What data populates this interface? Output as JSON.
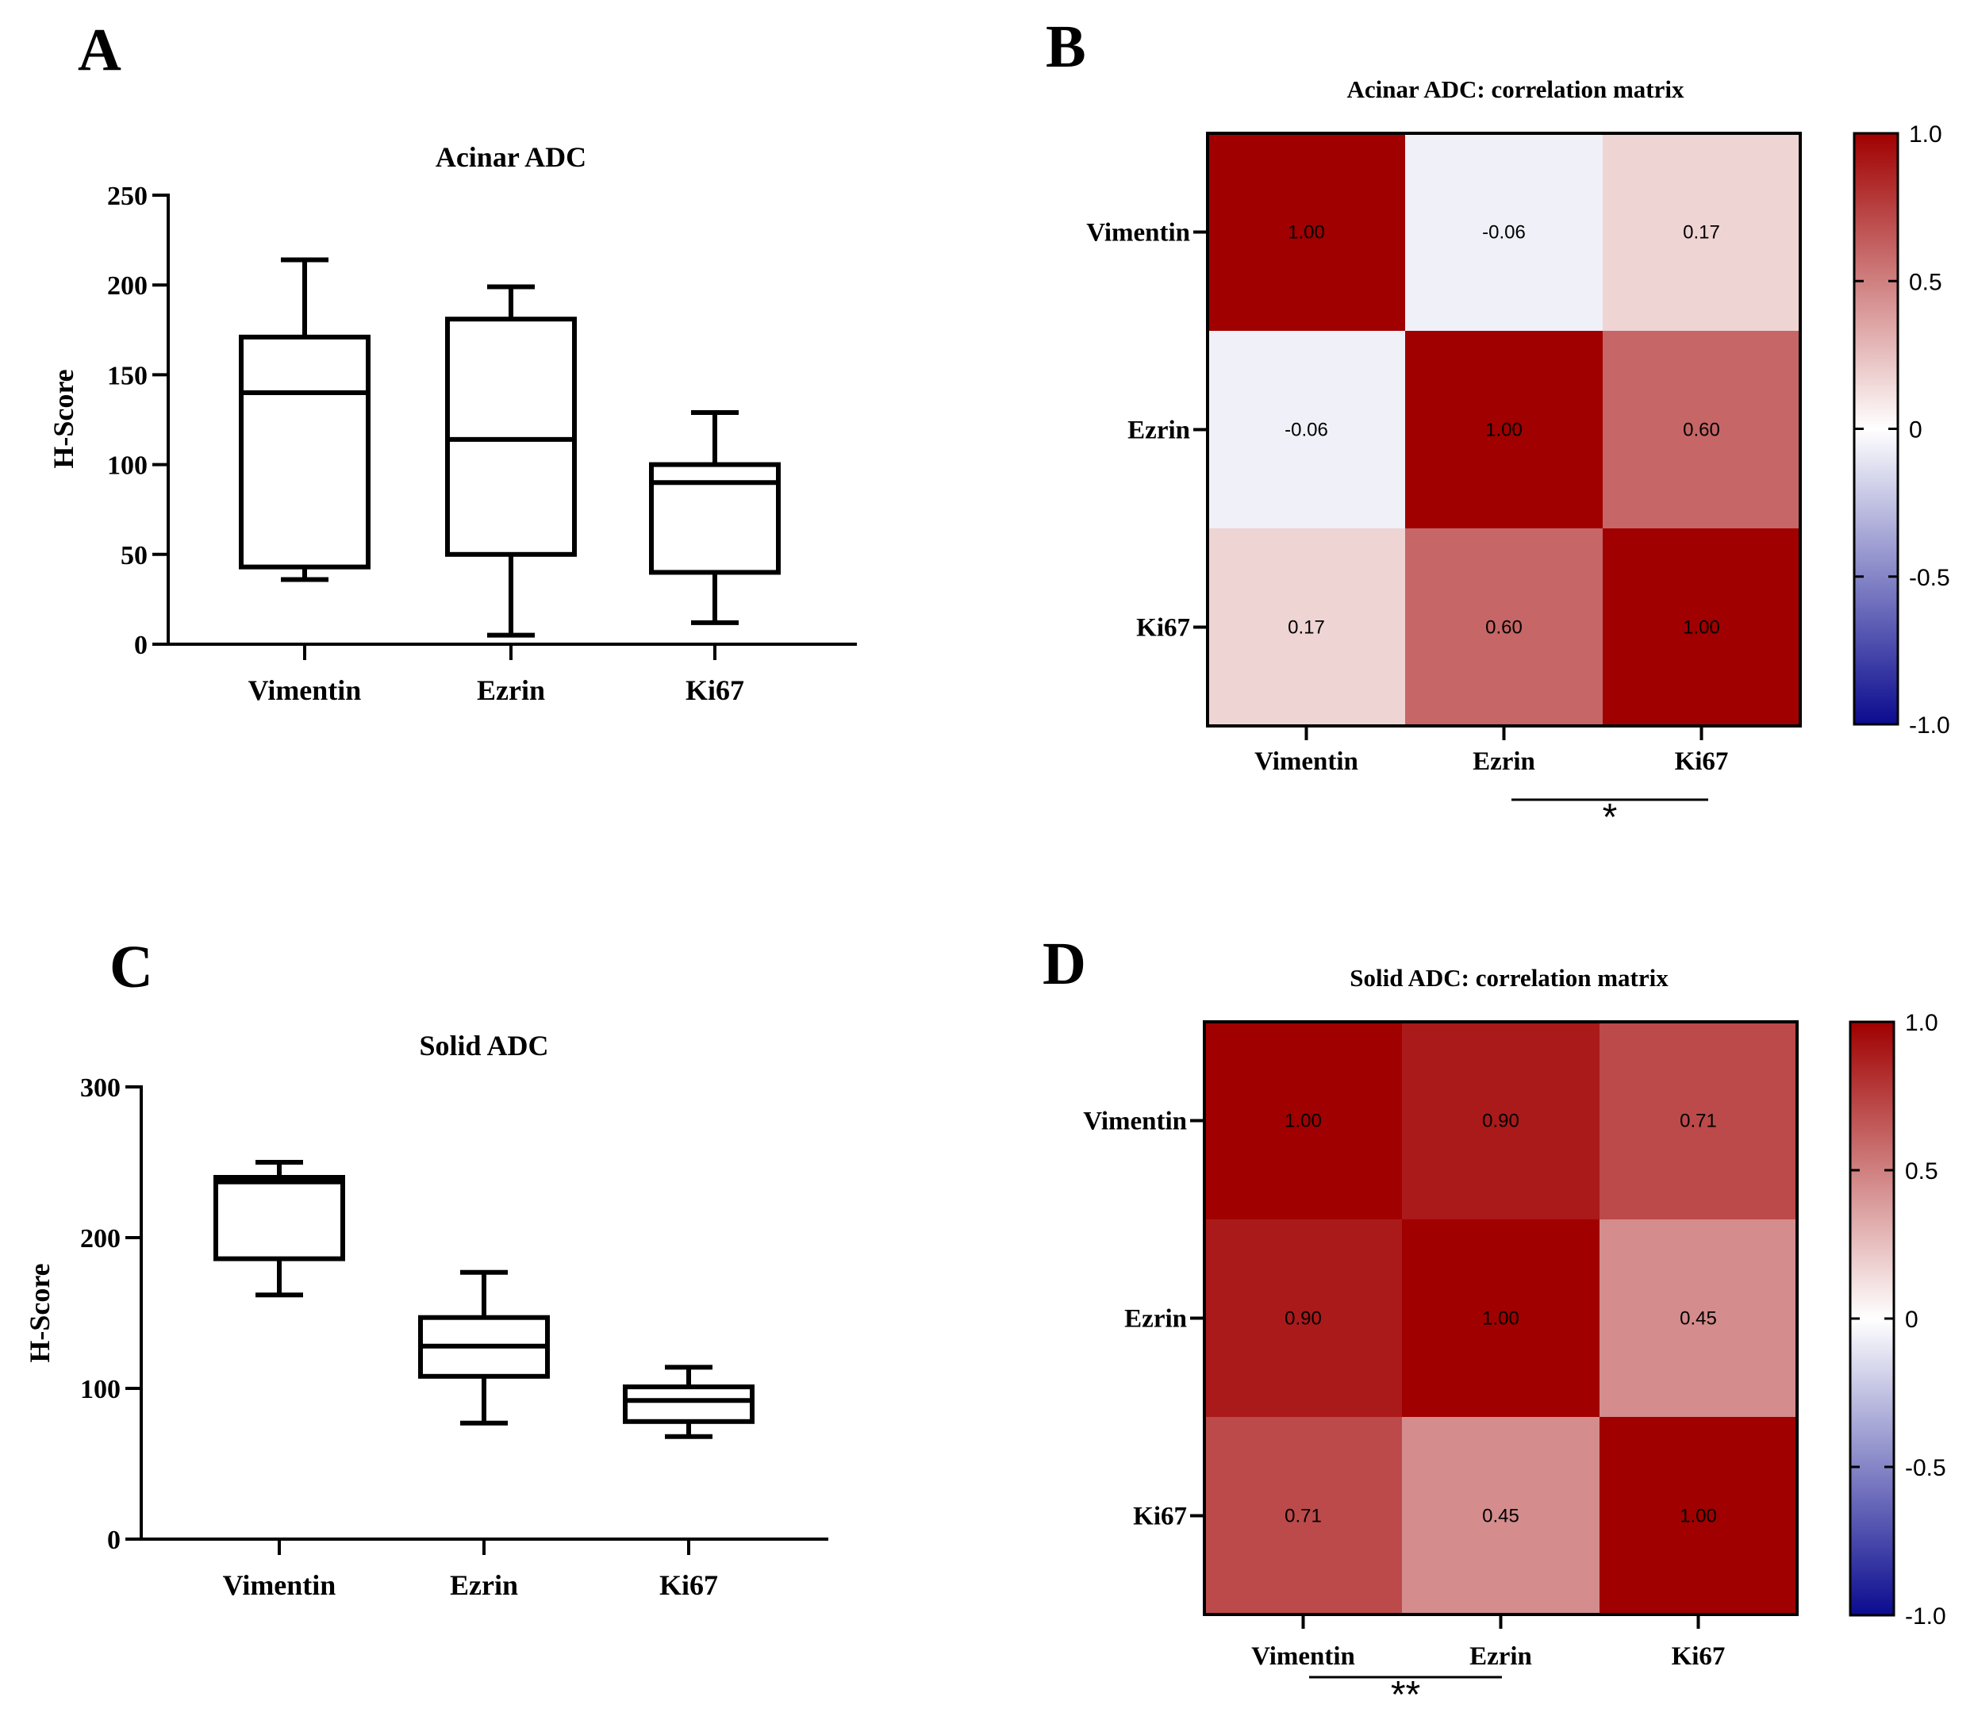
{
  "panels": {
    "A": "A",
    "B": "B",
    "C": "C",
    "D": "D"
  },
  "colors": {
    "neg": "#0b0b8f",
    "zero": "#ffffff",
    "pos": "#a00000",
    "stroke": "#000000"
  },
  "chart_data": [
    {
      "id": "A",
      "type": "box",
      "title": "Acinar ADC",
      "ylabel": "H-Score",
      "ylim": [
        0,
        250
      ],
      "yticks": [
        0,
        50,
        100,
        150,
        200,
        250
      ],
      "categories": [
        "Vimentin",
        "Ezrin",
        "Ki67"
      ],
      "boxes": [
        {
          "min": 36,
          "q1": 43,
          "median": 140,
          "q3": 171,
          "max": 214
        },
        {
          "min": 5,
          "q1": 50,
          "median": 114,
          "q3": 181,
          "max": 199
        },
        {
          "min": 12,
          "q1": 40,
          "median": 90,
          "q3": 100,
          "max": 129
        }
      ]
    },
    {
      "id": "B",
      "type": "heatmap",
      "title": "Acinar ADC: correlation matrix",
      "labels": [
        "Vimentin",
        "Ezrin",
        "Ki67"
      ],
      "values": [
        [
          1.0,
          -0.06,
          0.17
        ],
        [
          -0.06,
          1.0,
          0.6
        ],
        [
          0.17,
          0.6,
          1.0
        ]
      ],
      "value_labels": [
        [
          "1.00",
          "-0.06",
          "0.17"
        ],
        [
          "-0.06",
          "1.00",
          "0.60"
        ],
        [
          "0.17",
          "0.60",
          "1.00"
        ]
      ],
      "colorbar": {
        "range": [
          -1.0,
          1.0
        ],
        "ticks": [
          "1.0",
          "0.5",
          "0",
          "-0.5",
          "-1.0"
        ],
        "tick_values": [
          1.0,
          0.5,
          0,
          -0.5,
          -1.0
        ]
      },
      "significance": {
        "between": [
          "Ezrin",
          "Ki67"
        ],
        "label": "*"
      }
    },
    {
      "id": "C",
      "type": "box",
      "title": "Solid ADC",
      "ylabel": "H-Score",
      "ylim": [
        0,
        300
      ],
      "yticks": [
        0,
        100,
        200,
        300
      ],
      "categories": [
        "Vimentin",
        "Ezrin",
        "Ki67"
      ],
      "boxes": [
        {
          "min": 162,
          "q1": 186,
          "median": 237,
          "q3": 240,
          "max": 250
        },
        {
          "min": 77,
          "q1": 108,
          "median": 128,
          "q3": 147,
          "max": 177
        },
        {
          "min": 68,
          "q1": 78,
          "median": 92,
          "q3": 101,
          "max": 114
        }
      ]
    },
    {
      "id": "D",
      "type": "heatmap",
      "title": "Solid ADC: correlation matrix",
      "labels": [
        "Vimentin",
        "Ezrin",
        "Ki67"
      ],
      "values": [
        [
          1.0,
          0.9,
          0.71
        ],
        [
          0.9,
          1.0,
          0.45
        ],
        [
          0.71,
          0.45,
          1.0
        ]
      ],
      "value_labels": [
        [
          "1.00",
          "0.90",
          "0.71"
        ],
        [
          "0.90",
          "1.00",
          "0.45"
        ],
        [
          "0.71",
          "0.45",
          "1.00"
        ]
      ],
      "colorbar": {
        "range": [
          -1.0,
          1.0
        ],
        "ticks": [
          "1.0",
          "0.5",
          "0",
          "-0.5",
          "-1.0"
        ],
        "tick_values": [
          1.0,
          0.5,
          0,
          -0.5,
          -1.0
        ]
      },
      "significance": {
        "between": [
          "Vimentin",
          "Ezrin"
        ],
        "label": "**"
      }
    }
  ]
}
